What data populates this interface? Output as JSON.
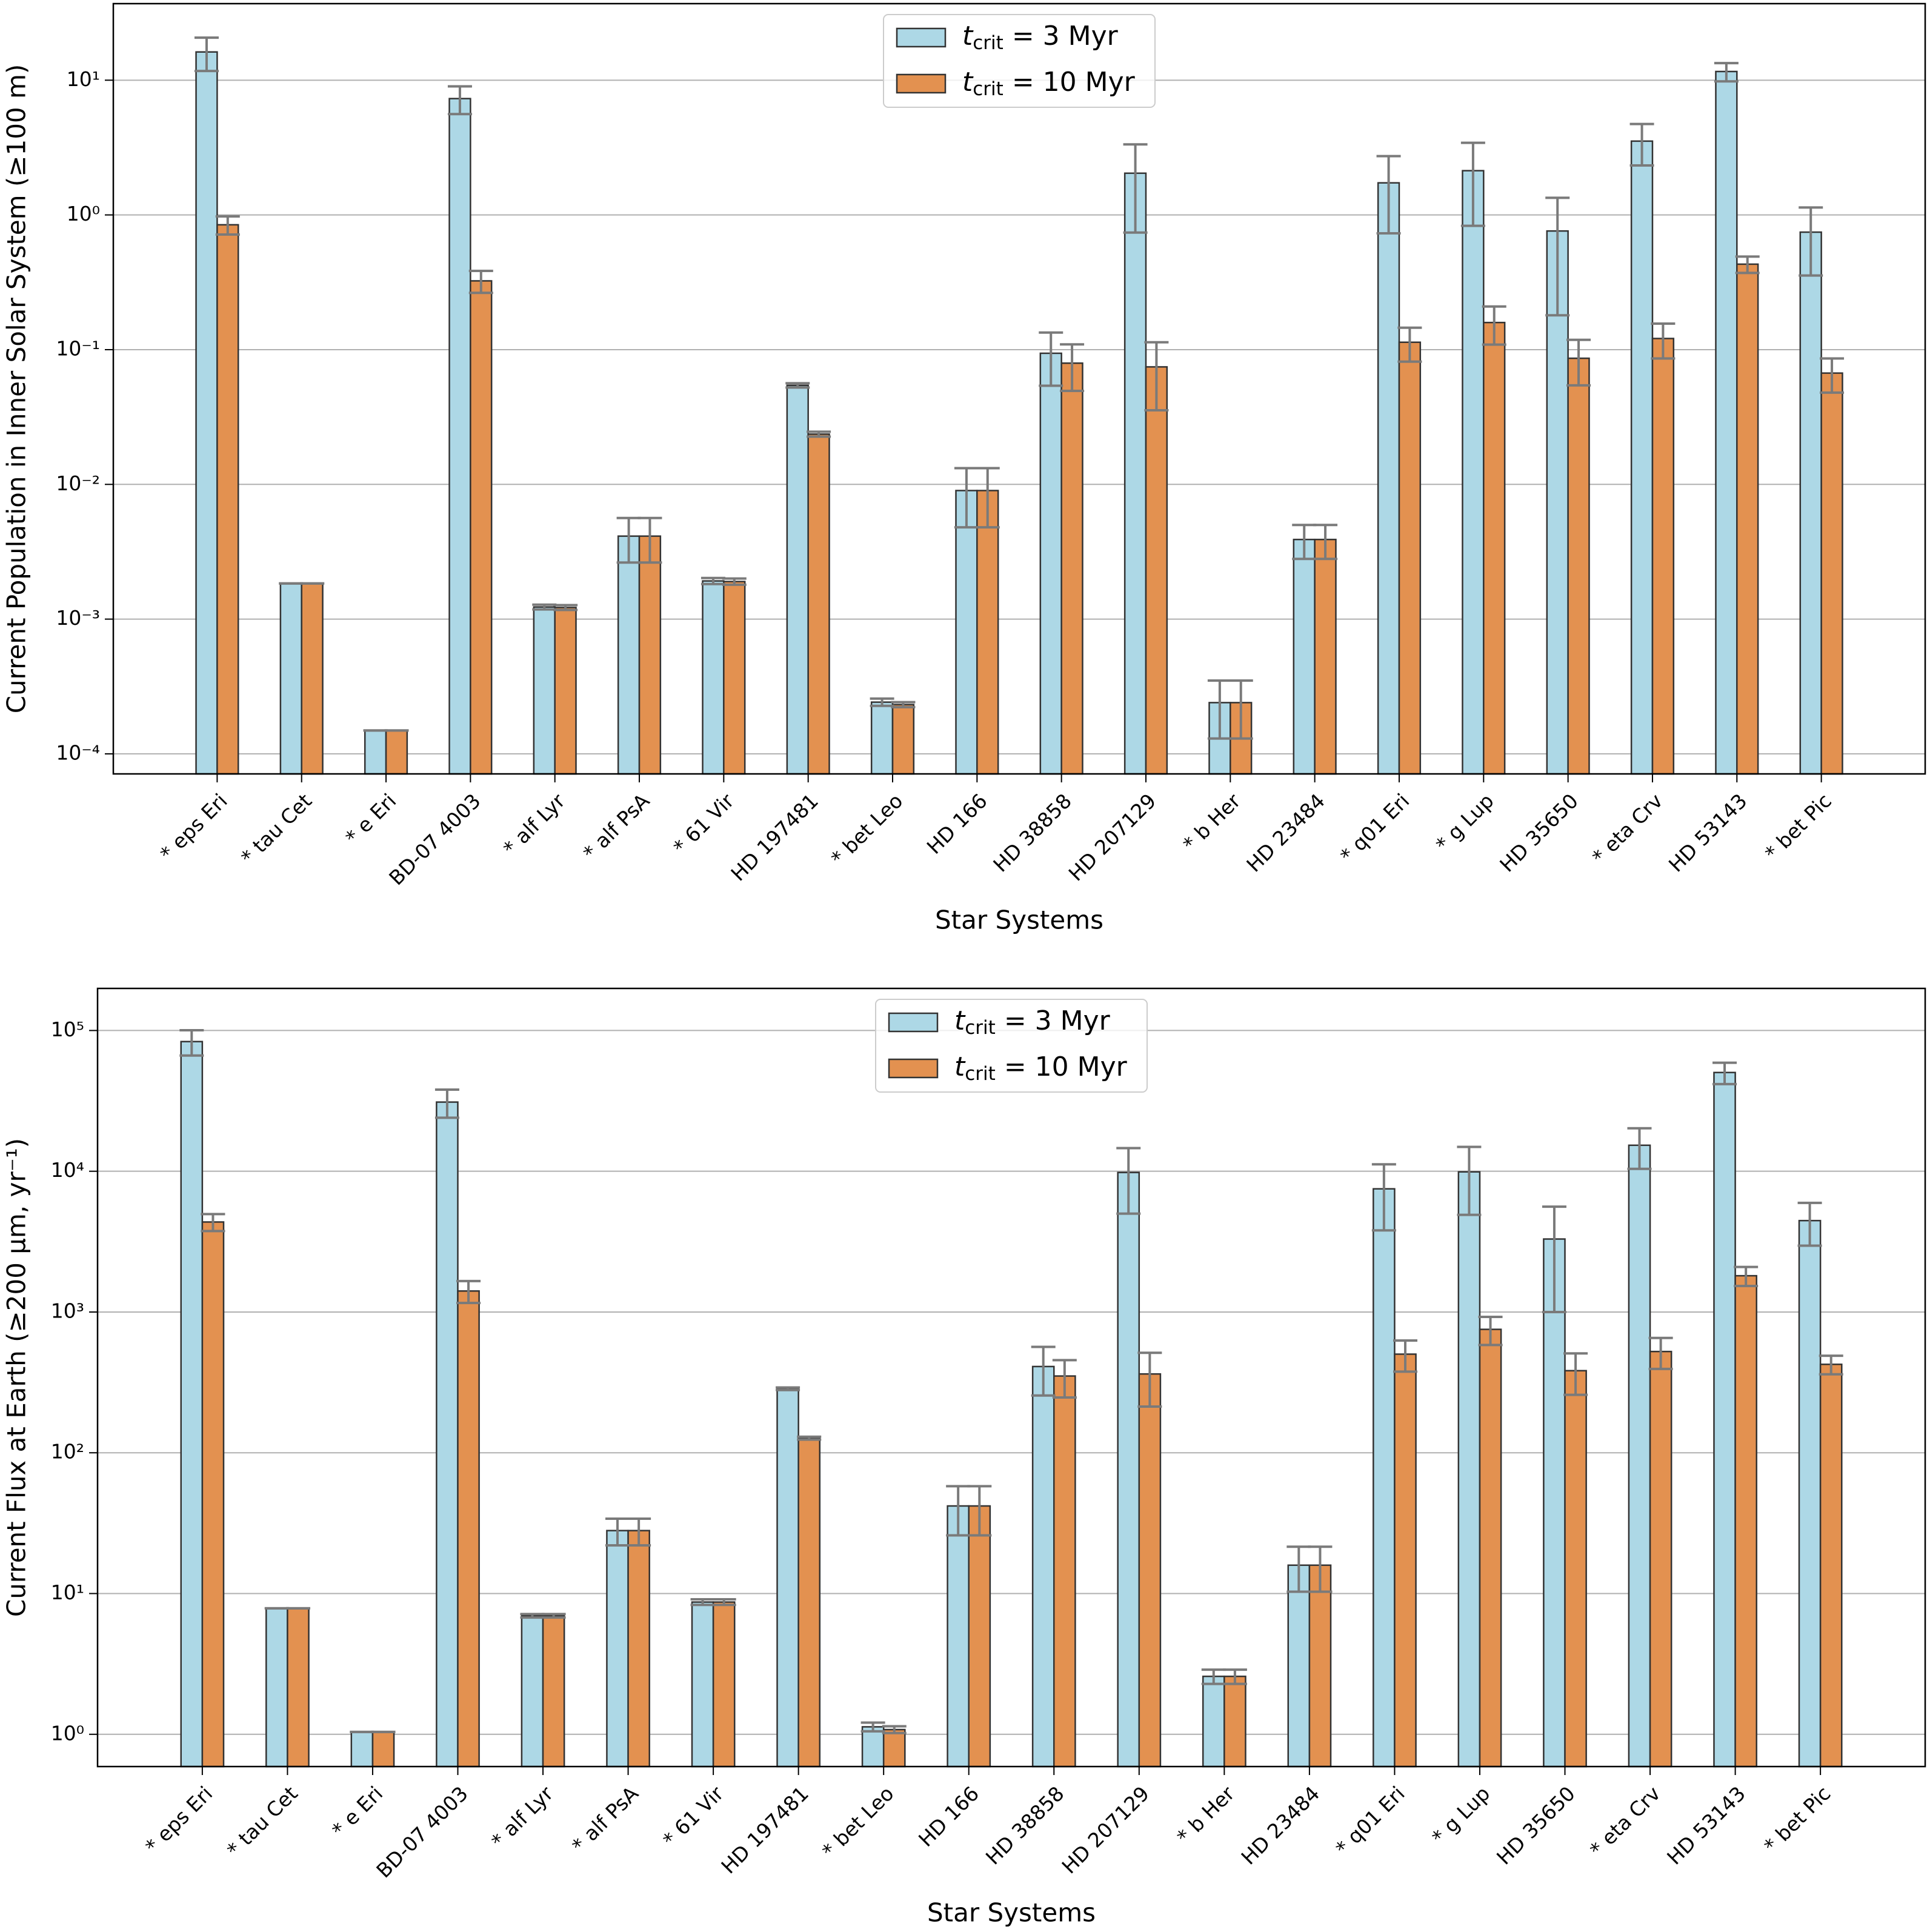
{
  "chart_data": [
    {
      "type": "bar",
      "log_y": true,
      "grid": true,
      "legend": "upper center",
      "ylabel": "Current Population in Inner Solar System (≥100 m)",
      "xlabel": "Star Systems",
      "categories": [
        "* eps Eri",
        "* tau Cet",
        "* e Eri",
        "BD-07 4003",
        "* alf Lyr",
        "* alf PsA",
        "* 61 Vir",
        "HD 197481",
        "* bet Leo",
        "HD 166",
        "HD 38858",
        "HD 207129",
        "* b Her",
        "HD 23484",
        "* q01 Eri",
        "* g Lup",
        "HD 35650",
        "* eta Crv",
        "HD 53143",
        "* bet Pic"
      ],
      "ylim": [
        7.1e-05,
        37
      ],
      "yticks": [
        {
          "value": 0.0001,
          "label": "10⁻⁴"
        },
        {
          "value": 0.001,
          "label": "10⁻³"
        },
        {
          "value": 0.01,
          "label": "10⁻²"
        },
        {
          "value": 0.1,
          "label": "10⁻¹"
        },
        {
          "value": 1,
          "label": "10⁰"
        },
        {
          "value": 10,
          "label": "10¹"
        }
      ],
      "series": [
        {
          "name": "tcrit = 3 Myr",
          "color": "#add8e6",
          "values": [
            16.2,
            0.00184,
            0.000149,
            7.3,
            0.00123,
            0.00413,
            0.00192,
            0.0543,
            0.000242,
            0.009,
            0.094,
            2.04,
            0.00024,
            0.0039,
            1.73,
            2.13,
            0.76,
            3.53,
            11.6,
            0.745
          ],
          "errors": [
            4.5,
            0,
            0,
            1.7,
            5e-05,
            0.0015,
            0.0001,
            0.002,
            1.5e-05,
            0.0042,
            0.04,
            1.3,
            0.00011,
            0.0011,
            1.0,
            1.3,
            0.58,
            1.2,
            1.8,
            0.39
          ]
        },
        {
          "name": "tcrit = 10 Myr",
          "color": "#e39150",
          "values": [
            0.845,
            0.00184,
            0.000149,
            0.324,
            0.00122,
            0.00413,
            0.0019,
            0.0236,
            0.000232,
            0.009,
            0.0794,
            0.0745,
            0.00024,
            0.0039,
            0.1135,
            0.159,
            0.0863,
            0.121,
            0.431,
            0.067
          ],
          "errors": [
            0.13,
            0,
            0,
            0.06,
            5e-05,
            0.0015,
            0.0001,
            0.001,
            1e-05,
            0.0042,
            0.03,
            0.039,
            0.00011,
            0.0011,
            0.032,
            0.05,
            0.032,
            0.035,
            0.06,
            0.019
          ]
        }
      ]
    },
    {
      "type": "bar",
      "log_y": true,
      "grid": true,
      "legend": "upper center",
      "ylabel": "Current Flux at Earth (≥200 μm, yr⁻¹)",
      "xlabel": "Star Systems",
      "categories": [
        "* eps Eri",
        "* tau Cet",
        "* e Eri",
        "BD-07 4003",
        "* alf Lyr",
        "* alf PsA",
        "* 61 Vir",
        "HD 197481",
        "* bet Leo",
        "HD 166",
        "HD 38858",
        "HD 207129",
        "* b Her",
        "HD 23484",
        "* q01 Eri",
        "* g Lup",
        "HD 35650",
        "* eta Crv",
        "HD 53143",
        "* bet Pic"
      ],
      "ylim": [
        0.59,
        199000
      ],
      "yticks": [
        {
          "value": 1,
          "label": "10⁰"
        },
        {
          "value": 10,
          "label": "10¹"
        },
        {
          "value": 100,
          "label": "10²"
        },
        {
          "value": 1000,
          "label": "10³"
        },
        {
          "value": 10000,
          "label": "10⁴"
        },
        {
          "value": 100000,
          "label": "10⁵"
        }
      ],
      "series": [
        {
          "name": "tcrit = 3 Myr",
          "color": "#add8e6",
          "values": [
            83400,
            7.85,
            1.04,
            31000,
            6.95,
            28,
            8.7,
            285,
            1.13,
            41.9,
            410,
            9800,
            2.58,
            15.9,
            7500,
            9900,
            3300,
            15300,
            50300,
            4460
          ],
          "errors": [
            17000,
            0,
            0,
            7000,
            0.2,
            6,
            0.4,
            6,
            0.08,
            16,
            155,
            4800,
            0.3,
            5.6,
            3700,
            5000,
            2300,
            4900,
            8700,
            1500
          ]
        },
        {
          "name": "tcrit = 10 Myr",
          "color": "#e39150",
          "values": [
            4360,
            7.85,
            1.04,
            1410,
            6.95,
            28,
            8.7,
            127,
            1.08,
            41.9,
            351,
            363,
            2.58,
            15.9,
            502,
            753,
            383,
            524,
            1810,
            425
          ],
          "errors": [
            600,
            0,
            0,
            250,
            0.2,
            6,
            0.4,
            3,
            0.06,
            16,
            104,
            150,
            0.3,
            5.6,
            125,
            170,
            125,
            130,
            280,
            64
          ]
        }
      ]
    }
  ]
}
